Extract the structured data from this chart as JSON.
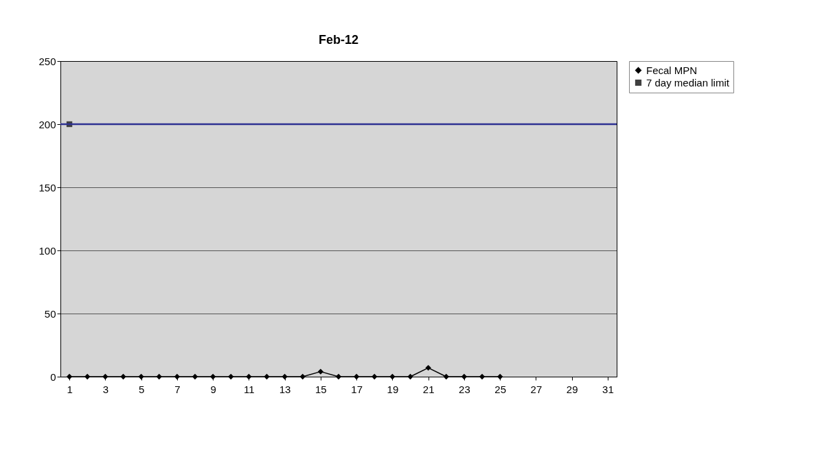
{
  "chart_data": {
    "type": "line",
    "title": "Feb-12",
    "x": [
      1,
      2,
      3,
      4,
      5,
      6,
      7,
      8,
      9,
      10,
      11,
      12,
      13,
      14,
      15,
      16,
      17,
      18,
      19,
      20,
      21,
      22,
      23,
      24,
      25
    ],
    "xlim": [
      0.5,
      31.5
    ],
    "xticks": [
      1,
      3,
      5,
      7,
      9,
      11,
      13,
      15,
      17,
      19,
      21,
      23,
      25,
      27,
      29,
      31
    ],
    "series": [
      {
        "name": "Fecal MPN",
        "color": "#000000",
        "marker": "diamond",
        "values": [
          0,
          0,
          0,
          0,
          0,
          0,
          0,
          0,
          0,
          0,
          0,
          0,
          0,
          0,
          4,
          0,
          0,
          0,
          0,
          0,
          7,
          0,
          0,
          0,
          0
        ]
      },
      {
        "name": "7 day median limit",
        "color": "#404040",
        "marker": "square",
        "x": [
          1
        ],
        "values": [
          200
        ]
      }
    ],
    "ylim": [
      0,
      250
    ],
    "yticks": [
      0,
      50,
      100,
      150,
      200,
      250
    ],
    "grid": "y",
    "legend": "right",
    "ref_lines": [
      {
        "axis": "y",
        "value": 200,
        "color": "#2e3192"
      }
    ]
  }
}
